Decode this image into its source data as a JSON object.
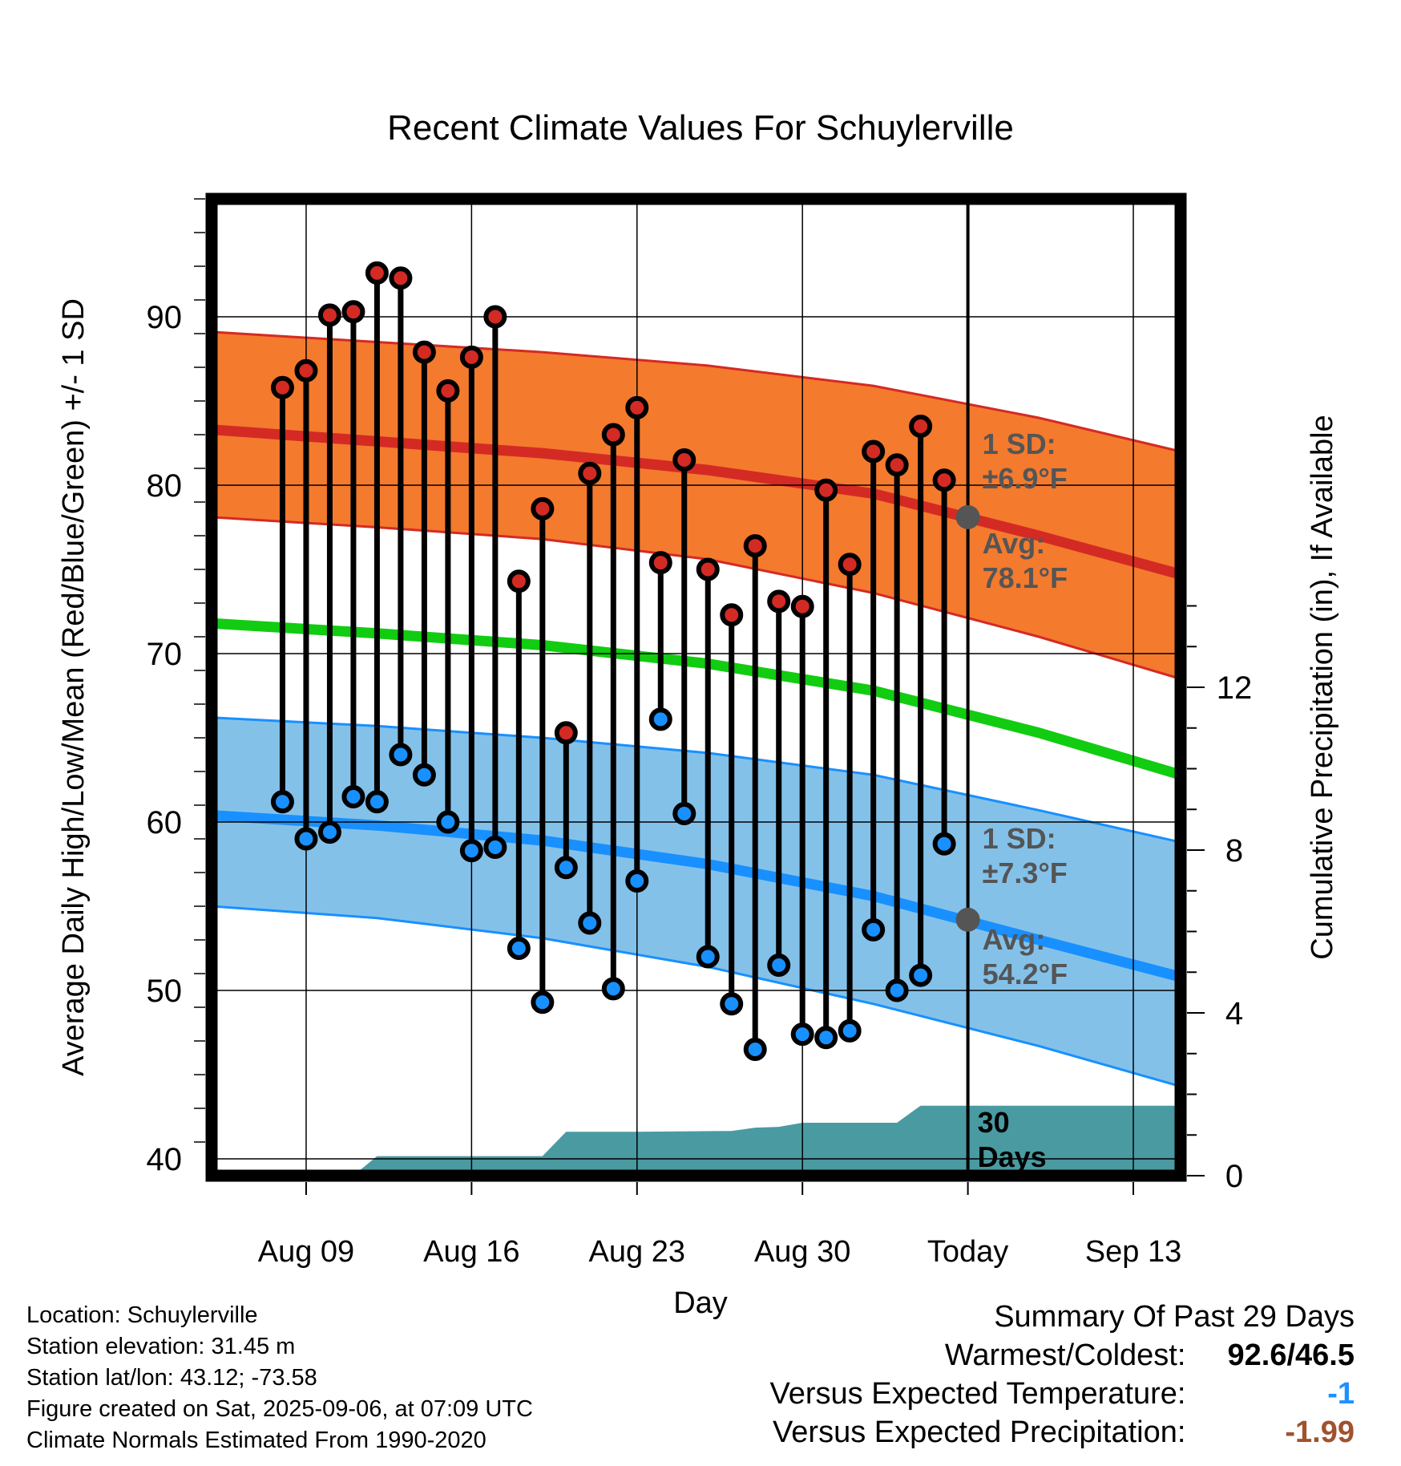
{
  "chart_data": {
    "type": "line",
    "title": "Recent Climate Values For Schuylerville",
    "xlabel": "Day",
    "ylabel": "Average Daily High/Low/Mean (Red/Blue/Green) +/- 1 SD",
    "y2label": "Cumulative Precipitation (in), If Available",
    "ylim": [
      39,
      97
    ],
    "y2lim": [
      0,
      24
    ],
    "xlim": [
      "Aug 05",
      "Sep 15"
    ],
    "yticks": [
      40,
      50,
      60,
      70,
      80,
      90
    ],
    "y2ticks": [
      0,
      4,
      8,
      12
    ],
    "xticks": [
      {
        "date": "Aug 09",
        "label": "Aug 09"
      },
      {
        "date": "Aug 16",
        "label": "Aug 16"
      },
      {
        "date": "Aug 23",
        "label": "Aug 23"
      },
      {
        "date": "Aug 30",
        "label": "Aug 30"
      },
      {
        "date": "Sep 06",
        "label": "Today"
      },
      {
        "date": "Sep 13",
        "label": "Sep 13"
      }
    ],
    "grid": true,
    "today": "Sep 06",
    "today_window_label": "30\nDays",
    "normal_dates": [
      "Aug 05",
      "Aug 12",
      "Aug 19",
      "Aug 26",
      "Sep 02",
      "Sep 09",
      "Sep 15"
    ],
    "normal_high": [
      83.3,
      82.6,
      81.9,
      80.9,
      79.5,
      77.0,
      74.7
    ],
    "high_sd_upper": [
      89.1,
      88.5,
      87.9,
      87.1,
      85.9,
      84.0,
      82.0
    ],
    "high_sd_lower": [
      78.1,
      77.5,
      76.8,
      75.6,
      73.6,
      71.0,
      68.5
    ],
    "normal_mean": [
      71.8,
      71.2,
      70.5,
      69.4,
      67.8,
      65.3,
      62.8
    ],
    "normal_low": [
      60.4,
      59.8,
      58.9,
      57.5,
      55.6,
      53.0,
      50.8
    ],
    "low_sd_upper": [
      66.2,
      65.7,
      65.0,
      64.1,
      62.8,
      60.7,
      58.8
    ],
    "low_sd_lower": [
      55.0,
      54.3,
      53.1,
      51.4,
      49.2,
      46.7,
      44.3
    ],
    "annotations": {
      "high_sd": "1 SD:\n±6.9°F",
      "high_avg": "Avg:\n78.1°F",
      "low_sd": "1 SD:\n±7.3°F",
      "low_avg": "Avg:\n54.2°F"
    },
    "today_high_avg": 78.1,
    "today_low_avg": 54.2,
    "observed_dates": [
      "Aug 08",
      "Aug 09",
      "Aug 10",
      "Aug 11",
      "Aug 12",
      "Aug 13",
      "Aug 14",
      "Aug 15",
      "Aug 16",
      "Aug 17",
      "Aug 18",
      "Aug 19",
      "Aug 20",
      "Aug 21",
      "Aug 22",
      "Aug 23",
      "Aug 24",
      "Aug 25",
      "Aug 26",
      "Aug 27",
      "Aug 28",
      "Aug 29",
      "Aug 30",
      "Aug 31",
      "Sep 01",
      "Sep 02",
      "Sep 03",
      "Sep 04",
      "Sep 05"
    ],
    "observed_high": [
      85.8,
      86.8,
      90.1,
      90.3,
      92.6,
      92.3,
      87.9,
      85.6,
      87.6,
      90.0,
      74.3,
      78.6,
      65.3,
      80.7,
      83.0,
      84.6,
      75.4,
      81.5,
      75.0,
      72.3,
      76.4,
      73.1,
      72.8,
      79.7,
      75.3,
      82.0,
      81.2,
      83.5,
      80.3
    ],
    "observed_low": [
      61.2,
      59.0,
      59.4,
      61.5,
      61.2,
      64.0,
      62.8,
      60.0,
      58.3,
      58.5,
      52.5,
      49.3,
      57.3,
      54.0,
      50.1,
      56.5,
      66.1,
      60.5,
      52.0,
      49.2,
      46.5,
      51.5,
      47.4,
      47.2,
      47.6,
      53.6,
      50.0,
      50.9,
      58.7
    ],
    "precip_dates": [
      "Aug 05",
      "Aug 11",
      "Aug 12",
      "Aug 15",
      "Aug 19",
      "Aug 20",
      "Aug 23",
      "Aug 27",
      "Aug 28",
      "Aug 29",
      "Aug 30",
      "Sep 03",
      "Sep 04",
      "Sep 15"
    ],
    "precip_cumulative": [
      0,
      0,
      0.48,
      0.48,
      0.48,
      1.08,
      1.08,
      1.1,
      1.18,
      1.2,
      1.3,
      1.3,
      1.72,
      1.72
    ]
  },
  "colors": {
    "high_band": "#f47a2e",
    "high_line": "#d42a24",
    "mean_line": "#11cc11",
    "low_band": "#84c1e9",
    "low_line": "#1890ff",
    "precip": "#4a9aa2",
    "high_marker": "#d42a24",
    "low_marker": "#1890ff",
    "annotation": "#555555",
    "precip_negative": "#a0522d",
    "temp_departure": "#1e90ff"
  },
  "info": {
    "location": "Location: Schuylerville",
    "elevation": "Station elevation: 31.45 m",
    "latlon": "Station lat/lon: 43.12; -73.58",
    "created": "Figure created on Sat, 2025-09-06, at 07:09 UTC",
    "normals": "Climate Normals Estimated From 1990-2020"
  },
  "summary": {
    "title": "Summary Of Past 29 Days",
    "warmest_label": "Warmest/Coldest:",
    "warmest_value": "92.6/46.5",
    "temp_label": "Versus Expected Temperature:",
    "temp_value": "-1",
    "precip_label": "Versus Expected Precipitation:",
    "precip_value": "-1.99"
  }
}
